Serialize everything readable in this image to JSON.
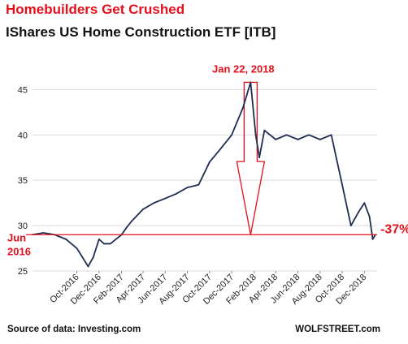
{
  "header": {
    "title": "Homebuilders Get Crushed",
    "subtitle": "IShares US Home Construction ETF [ITB]"
  },
  "footer": {
    "source": "Source of data: Investing.com",
    "brand": "WOLFSTREET.com"
  },
  "colors": {
    "line": "#1f2d52",
    "accent": "#e3101c",
    "grid": "#d9d9d9"
  },
  "chart_data": {
    "type": "line",
    "title": "IShares US Home Construction ETF [ITB]",
    "ylim": [
      25,
      47
    ],
    "y_ticks": [
      25,
      30,
      35,
      40,
      45
    ],
    "x_ticks": [
      "Oct-2016",
      "Dec-2016",
      "Feb-2017",
      "Apr-2017",
      "Jun-2017",
      "Aug-2017",
      "Oct-2017",
      "Dec-2017",
      "Feb-2018",
      "Apr-2018",
      "Jun-2018",
      "Aug-2018",
      "Oct-2018",
      "Dec-2018"
    ],
    "grid": "horizontal",
    "series": [
      {
        "x": [
          "2016-06-01",
          "2016-07-01",
          "2016-08-01",
          "2016-09-01",
          "2016-10-01",
          "2016-11-01",
          "2016-11-15",
          "2016-12-01",
          "2016-12-15",
          "2017-01-01",
          "2017-02-01",
          "2017-02-15",
          "2017-03-01",
          "2017-04-01",
          "2017-05-01",
          "2017-06-01",
          "2017-07-01",
          "2017-08-01",
          "2017-09-01",
          "2017-10-01",
          "2017-11-01",
          "2017-12-01",
          "2018-01-01",
          "2018-01-22",
          "2018-02-05",
          "2018-02-15",
          "2018-03-01",
          "2018-04-01",
          "2018-05-01",
          "2018-06-01",
          "2018-07-01",
          "2018-08-01",
          "2018-09-01",
          "2018-10-01",
          "2018-10-25",
          "2018-11-15",
          "2018-12-01",
          "2018-12-15",
          "2018-12-24",
          "2018-12-31"
        ],
        "y": [
          29.0,
          29.2,
          29.0,
          28.5,
          27.5,
          25.5,
          26.5,
          28.5,
          28.0,
          28.0,
          29.0,
          29.8,
          30.5,
          31.8,
          32.5,
          33.0,
          33.5,
          34.2,
          34.5,
          37.0,
          38.5,
          40.0,
          43.0,
          45.8,
          40.0,
          37.5,
          40.5,
          39.5,
          40.0,
          39.5,
          40.0,
          39.5,
          40.0,
          34.5,
          30.0,
          31.5,
          32.5,
          31.0,
          28.5,
          29.0
        ]
      }
    ],
    "reference_level": 29.0,
    "annotations": [
      {
        "text": "Jan 22, 2018",
        "x": "2018-01-22",
        "y": 45.8
      },
      {
        "text": "-37%",
        "x": "2018-12-24",
        "y": 29.0
      },
      {
        "text": "Jun",
        "x": "2016-06-01",
        "y": 29.0
      },
      {
        "text": "2016",
        "x": "2016-06-01",
        "y": 29.0
      }
    ]
  }
}
